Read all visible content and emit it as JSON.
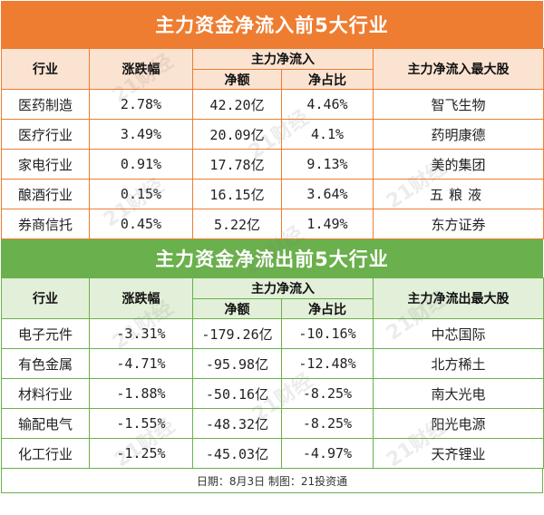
{
  "inflow": {
    "title": "主力资金净流入前5大行业",
    "headers": {
      "industry": "行业",
      "change": "涨跌幅",
      "main_net": "主力净流入",
      "net_amount": "净额",
      "net_ratio": "净占比",
      "top_stock": "主力净流入最大股"
    },
    "rows": [
      {
        "industry": "医药制造",
        "change": "2.78%",
        "net_amount": "42.20亿",
        "net_ratio": "4.46%",
        "top_stock": "智飞生物"
      },
      {
        "industry": "医疗行业",
        "change": "3.49%",
        "net_amount": "20.09亿",
        "net_ratio": "4.1%",
        "top_stock": "药明康德"
      },
      {
        "industry": "家电行业",
        "change": "0.91%",
        "net_amount": "17.78亿",
        "net_ratio": "9.13%",
        "top_stock": "美的集团"
      },
      {
        "industry": "酿酒行业",
        "change": "0.15%",
        "net_amount": "16.15亿",
        "net_ratio": "3.64%",
        "top_stock": "五粮液"
      },
      {
        "industry": "券商信托",
        "change": "0.45%",
        "net_amount": "5.22亿",
        "net_ratio": "1.49%",
        "top_stock": "东方证券"
      }
    ]
  },
  "outflow": {
    "title": "主力资金净流出前5大行业",
    "headers": {
      "industry": "行业",
      "change": "涨跌幅",
      "main_net": "主力净流入",
      "net_amount": "净额",
      "net_ratio": "净占比",
      "top_stock": "主力净流出最大股"
    },
    "rows": [
      {
        "industry": "电子元件",
        "change": "-3.31%",
        "net_amount": "-179.26亿",
        "net_ratio": "-10.16%",
        "top_stock": "中芯国际"
      },
      {
        "industry": "有色金属",
        "change": "-4.71%",
        "net_amount": "-95.98亿",
        "net_ratio": "-12.48%",
        "top_stock": "北方稀土"
      },
      {
        "industry": "材料行业",
        "change": "-1.88%",
        "net_amount": "-50.16亿",
        "net_ratio": "-8.25%",
        "top_stock": "南大光电"
      },
      {
        "industry": "输配电气",
        "change": "-1.55%",
        "net_amount": "-48.32亿",
        "net_ratio": "-8.25%",
        "top_stock": "阳光电源"
      },
      {
        "industry": "化工行业",
        "change": "-1.25%",
        "net_amount": "-45.03亿",
        "net_ratio": "-4.97%",
        "top_stock": "天齐锂业"
      }
    ]
  },
  "footer": "日期：8月3日  制图：21投资通",
  "watermark": "21财经",
  "colors": {
    "inflow_accent": "#ee7d31",
    "inflow_header_bg": "#fbe3d2",
    "outflow_accent": "#6ab04c",
    "outflow_header_bg": "#e3f0d9"
  }
}
